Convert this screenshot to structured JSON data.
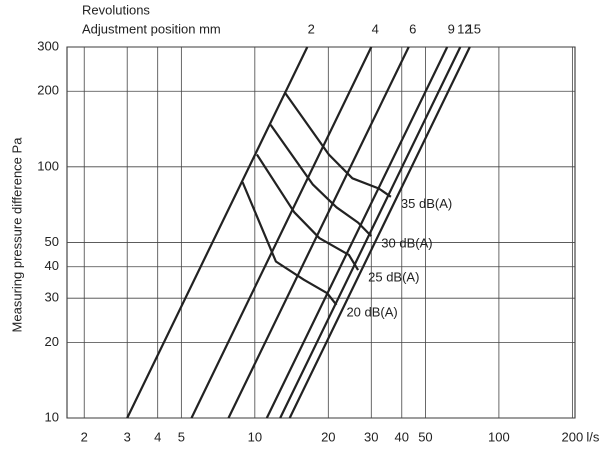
{
  "chart_data": {
    "type": "line",
    "top_labels": [
      "Revolutions",
      "Adjustment position mm"
    ],
    "ylabel": "Measuring pressure difference Pa",
    "xlabel": "l/s",
    "xscale": "log",
    "yscale": "log",
    "xlim": [
      1.7,
      205
    ],
    "ylim": [
      10,
      300
    ],
    "xticks": [
      2,
      3,
      4,
      5,
      10,
      20,
      30,
      40,
      50,
      100,
      200
    ],
    "yticks": [
      10,
      20,
      30,
      40,
      50,
      100,
      200,
      300
    ],
    "grid": true,
    "color": "#222222",
    "series": [
      {
        "name": "2",
        "x": [
          3,
          16.4
        ],
        "y": [
          10,
          300
        ]
      },
      {
        "name": "4",
        "x": [
          5.5,
          30
        ],
        "y": [
          10,
          300
        ]
      },
      {
        "name": "6",
        "x": [
          7.8,
          42.7
        ],
        "y": [
          10,
          300
        ]
      },
      {
        "name": "9",
        "x": [
          11.2,
          61.4
        ],
        "y": [
          10,
          300
        ]
      },
      {
        "name": "12",
        "x": [
          12.7,
          69.5
        ],
        "y": [
          10,
          300
        ]
      },
      {
        "name": "15",
        "x": [
          13.9,
          76
        ],
        "y": [
          10,
          300
        ]
      }
    ],
    "curves": [
      {
        "name": "35 dB(A)",
        "x": [
          13.3,
          20.1,
          25.1,
          32.2,
          36.1
        ],
        "y": [
          197,
          112,
          90,
          82,
          76
        ]
      },
      {
        "name": "30 dB(A)",
        "x": [
          11.6,
          17.3,
          21.6,
          26.5,
          30
        ],
        "y": [
          147,
          85,
          69,
          60,
          53
        ]
      },
      {
        "name": "25 dB(A)",
        "x": [
          10.2,
          14.5,
          18.4,
          24.3,
          26.5
        ],
        "y": [
          112,
          66,
          52,
          44.6,
          38.8
        ]
      },
      {
        "name": "20 dB(A)",
        "x": [
          8.9,
          12.2,
          15.9,
          19.8,
          21.6
        ],
        "y": [
          87,
          42,
          35.5,
          31.4,
          28.2
        ]
      }
    ]
  }
}
